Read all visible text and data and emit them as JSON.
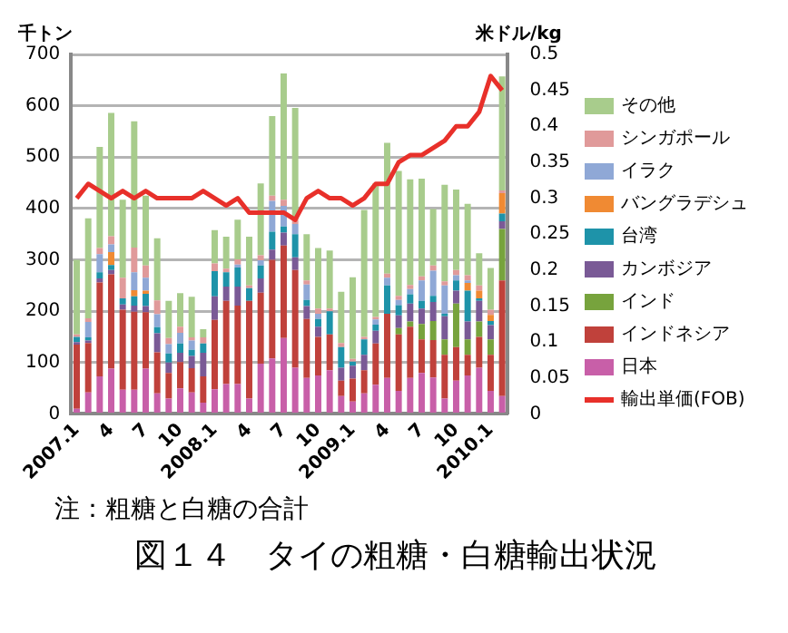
{
  "chart_data": {
    "type": "bar",
    "stacked": true,
    "title": "図１４　タイの粗糖・白糖輸出状況",
    "annotations": [
      "注：粗糖と白糖の合計"
    ],
    "ylabel": "千トン",
    "y2label": "米ドル/kg",
    "categories": [
      "2007.1",
      null,
      null,
      "4",
      null,
      null,
      "7",
      null,
      null,
      "10",
      null,
      null,
      "2008.1",
      null,
      null,
      "4",
      null,
      null,
      "7",
      null,
      null,
      "10",
      null,
      null,
      "2009.1",
      null,
      null,
      "4",
      null,
      null,
      "7",
      null,
      null,
      "10",
      null,
      null,
      "2010.1",
      null
    ],
    "series": [
      {
        "name": "日本",
        "color": "#c85fa8",
        "values": [
          10,
          42,
          73,
          88,
          47,
          47,
          88,
          40,
          30,
          50,
          42,
          22,
          48,
          58,
          58,
          30,
          98,
          108,
          148,
          90,
          70,
          75,
          85,
          35,
          24,
          40,
          57,
          70,
          45,
          70,
          80,
          71,
          30,
          65,
          75,
          90,
          45,
          35
        ]
      },
      {
        "name": "インドネシア",
        "color": "#c0413b",
        "values": [
          125,
          96,
          183,
          184,
          156,
          152,
          110,
          80,
          50,
          51,
          47,
          51,
          135,
          162,
          153,
          190,
          138,
          192,
          180,
          190,
          115,
          75,
          70,
          30,
          45,
          45,
          80,
          125,
          110,
          100,
          65,
          73,
          85,
          65,
          40,
          60,
          70,
          225
        ]
      },
      {
        "name": "インド",
        "color": "#77a33d",
        "values": [
          0,
          0,
          0,
          0,
          0,
          0,
          0,
          0,
          0,
          0,
          0,
          0,
          0,
          0,
          0,
          0,
          0,
          0,
          0,
          0,
          0,
          0,
          0,
          0,
          0,
          0,
          0,
          0,
          12,
          10,
          30,
          37,
          30,
          85,
          30,
          30,
          30,
          100
        ]
      },
      {
        "name": "カンボジア",
        "color": "#7a5a96",
        "values": [
          5,
          5,
          8,
          8,
          10,
          12,
          12,
          37,
          20,
          18,
          24,
          46,
          46,
          28,
          37,
          0,
          28,
          20,
          25,
          25,
          25,
          20,
          0,
          25,
          25,
          30,
          25,
          0,
          25,
          35,
          30,
          37,
          45,
          25,
          35,
          40,
          28,
          15
        ]
      },
      {
        "name": "台湾",
        "color": "#1e93a9",
        "values": [
          10,
          6,
          12,
          10,
          12,
          18,
          24,
          12,
          18,
          18,
          12,
          18,
          49,
          28,
          37,
          25,
          25,
          35,
          12,
          45,
          12,
          15,
          45,
          40,
          8,
          30,
          12,
          55,
          20,
          18,
          15,
          12,
          5,
          20,
          60,
          5,
          8,
          15
        ]
      },
      {
        "name": "バングラデシュ",
        "color": "#f08a33",
        "values": [
          0,
          0,
          0,
          25,
          0,
          12,
          6,
          0,
          0,
          0,
          0,
          0,
          0,
          0,
          0,
          0,
          0,
          0,
          0,
          0,
          0,
          0,
          0,
          0,
          0,
          0,
          0,
          0,
          0,
          0,
          0,
          0,
          0,
          0,
          15,
          15,
          12,
          40
        ]
      },
      {
        "name": "イラク",
        "color": "#8fa8d6",
        "values": [
          0,
          30,
          35,
          15,
          0,
          35,
          25,
          25,
          18,
          21,
          18,
          0,
          0,
          0,
          6,
          0,
          10,
          60,
          40,
          20,
          30,
          10,
          0,
          0,
          0,
          0,
          10,
          15,
          10,
          10,
          40,
          49,
          55,
          10,
          5,
          0,
          0,
          0
        ]
      },
      {
        "name": "シンガポール",
        "color": "#e09a9a",
        "values": [
          5,
          7,
          12,
          16,
          40,
          48,
          24,
          27,
          12,
          12,
          6,
          12,
          15,
          7,
          10,
          5,
          10,
          10,
          12,
          8,
          8,
          10,
          5,
          8,
          5,
          5,
          5,
          8,
          8,
          8,
          8,
          10,
          8,
          10,
          10,
          10,
          10,
          5
        ]
      },
      {
        "name": "その他",
        "color": "#a8cc8c",
        "values": [
          145,
          195,
          197,
          240,
          152,
          246,
          136,
          121,
          72,
          65,
          79,
          16,
          65,
          62,
          77,
          95,
          140,
          155,
          246,
          218,
          90,
          118,
          113,
          100,
          159,
          247,
          260,
          255,
          243,
          206,
          190,
          110,
          188,
          157,
          139,
          63,
          81,
          222
        ]
      },
      {
        "name": "輸出単価(FOB)",
        "type": "line",
        "axis": "y2",
        "color": "#e8302a",
        "values": [
          0.3,
          0.32,
          0.31,
          0.3,
          0.31,
          0.3,
          0.31,
          0.3,
          0.3,
          0.3,
          0.3,
          0.31,
          0.3,
          0.29,
          0.3,
          0.28,
          0.28,
          0.28,
          0.28,
          0.27,
          0.3,
          0.31,
          0.3,
          0.3,
          0.29,
          0.3,
          0.32,
          0.32,
          0.35,
          0.36,
          0.36,
          0.37,
          0.38,
          0.4,
          0.4,
          0.42,
          0.47,
          0.45
        ]
      }
    ],
    "ylim": [
      0,
      700
    ],
    "yticks": [
      0,
      100,
      200,
      300,
      400,
      500,
      600,
      700
    ],
    "y2lim": [
      0,
      0.5
    ],
    "y2ticks": [
      0,
      0.05,
      0.1,
      0.15,
      0.2,
      0.25,
      0.3,
      0.35,
      0.4,
      0.45,
      0.5
    ],
    "grid": "y",
    "legend": "right",
    "marker": "none",
    "line_style": "solid"
  }
}
